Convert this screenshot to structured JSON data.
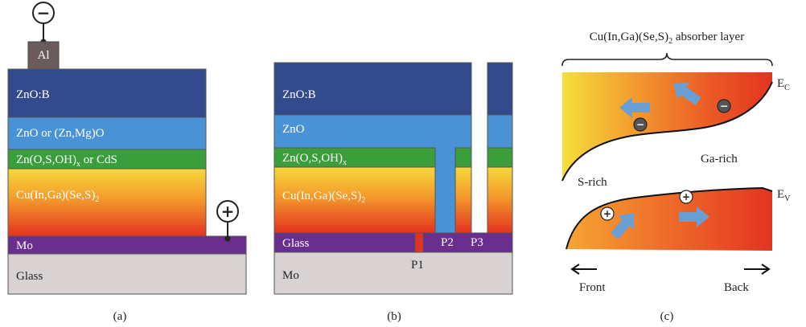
{
  "panel_a": {
    "top_contact": "Al",
    "minus_symbol": "−",
    "plus_symbol": "+",
    "layers": [
      "ZnO:B",
      "ZnO or (Zn,Mg)O",
      "Zn(O,S,OH)",
      "x",
      " or CdS",
      "Cu(In,Ga)(Se,S)",
      "2",
      "Mo",
      "Glass"
    ],
    "caption": "(a)"
  },
  "panel_b": {
    "layers": [
      "ZnO:B",
      "ZnO",
      "Zn(O,S,OH)",
      "x",
      "Cu(In,Ga)(Se,S)",
      "2",
      "Mo",
      "Glass"
    ],
    "scribes": [
      "P1",
      "P2",
      "P3"
    ],
    "caption": "(b)"
  },
  "panel_c": {
    "title_main": "Cu(In,Ga)(Se,S)",
    "title_sub": "2",
    "title_tail": " absorber layer",
    "ec": "E",
    "ec_sub": "C",
    "ev": "E",
    "ev_sub": "V",
    "s_rich": "S-rich",
    "ga_rich": "Ga-rich",
    "front": "Front",
    "back": "Back",
    "electron_symbol": "−",
    "hole_symbol": "+",
    "caption": "(c)"
  },
  "colors": {
    "zno_b": "#334a8c",
    "zno": "#4a92d6",
    "buffer": "#3a9e3a",
    "mo": "#6a2e8e",
    "glass": "#d9d2d2",
    "al": "#6a5c5c",
    "absorber_top": "#f6d23a",
    "absorber_bottom": "#e8321e",
    "arrow": "#6a9fd4"
  }
}
